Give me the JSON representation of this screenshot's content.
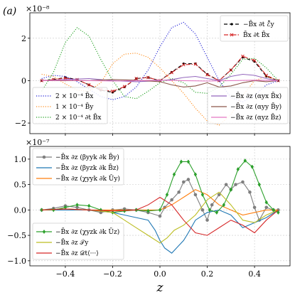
{
  "panel_label": "(a)",
  "chart_data": [
    {
      "type": "line",
      "title": "",
      "xlabel": "",
      "ylabel": "",
      "y_scale_label": "×10⁻⁸",
      "xlim": [
        -0.55,
        0.55
      ],
      "ylim": [
        -2.5,
        3.2
      ],
      "xticks": [
        -0.4,
        -0.2,
        0.0,
        0.2,
        0.4
      ],
      "yticks": [
        -2,
        0,
        2
      ],
      "ytick_labels": [
        "−2",
        "0",
        "2"
      ],
      "grid": true,
      "legend_top_right": "top-right",
      "legend_bottom_left": "lower-left",
      "legend_bottom_right": "lower-right",
      "series": [
        {
          "name": "−B̄x ∂t ℰ̄y",
          "color": "#000000",
          "style": "dashed-dot-markers",
          "legend": "top-right",
          "x": [
            -0.5,
            -0.45,
            -0.4,
            -0.35,
            -0.3,
            -0.25,
            -0.2,
            -0.15,
            -0.1,
            -0.05,
            0.0,
            0.05,
            0.1,
            0.15,
            0.2,
            0.25,
            0.3,
            0.35,
            0.4,
            0.45,
            0.5
          ],
          "y": [
            0.0,
            0.05,
            0.15,
            0.05,
            -0.2,
            -0.45,
            -0.55,
            -0.3,
            0.1,
            0.15,
            0.0,
            0.4,
            0.8,
            0.8,
            0.3,
            0.0,
            0.5,
            1.1,
            0.9,
            0.2,
            0.0
          ]
        },
        {
          "name": "B̄x ∂t B̄x",
          "color": "#d62728",
          "style": "dashdot-x",
          "legend": "top-right",
          "x": [
            -0.5,
            -0.45,
            -0.4,
            -0.35,
            -0.3,
            -0.25,
            -0.2,
            -0.15,
            -0.1,
            -0.05,
            0.0,
            0.05,
            0.1,
            0.15,
            0.2,
            0.25,
            0.3,
            0.35,
            0.4,
            0.45,
            0.5
          ],
          "y": [
            0.0,
            0.05,
            0.12,
            0.05,
            -0.2,
            -0.42,
            -0.5,
            -0.28,
            0.1,
            0.15,
            0.0,
            0.38,
            0.75,
            0.78,
            0.28,
            0.0,
            0.5,
            1.15,
            0.95,
            0.25,
            0.0
          ]
        },
        {
          "name": "2 × 10⁻⁴ B̄x",
          "color": "#1f1fd6",
          "style": "dotted",
          "legend": "bottom-left",
          "x": [
            -0.5,
            -0.45,
            -0.4,
            -0.35,
            -0.3,
            -0.25,
            -0.2,
            -0.15,
            -0.1,
            -0.05,
            0.0,
            0.05,
            0.1,
            0.15,
            0.2,
            0.25,
            0.3,
            0.35,
            0.4,
            0.45,
            0.5
          ],
          "y": [
            0.1,
            0.25,
            0.2,
            -0.05,
            -0.4,
            -0.75,
            -0.9,
            -0.75,
            -0.3,
            0.5,
            1.6,
            2.5,
            2.75,
            2.2,
            1.1,
            0.0,
            -0.8,
            -1.0,
            -0.7,
            -0.2,
            0.0
          ]
        },
        {
          "name": "1 × 10⁻⁴ B̄y",
          "color": "#ff8c1a",
          "style": "dotted",
          "legend": "bottom-left",
          "x": [
            -0.5,
            -0.45,
            -0.4,
            -0.35,
            -0.3,
            -0.25,
            -0.2,
            -0.15,
            -0.1,
            -0.05,
            0.0,
            0.05,
            0.1,
            0.15,
            0.2,
            0.25,
            0.3,
            0.35,
            0.4,
            0.45,
            0.5
          ],
          "y": [
            0.3,
            0.2,
            -0.15,
            -0.45,
            -0.5,
            -0.1,
            0.8,
            1.25,
            1.3,
            1.1,
            0.6,
            0.0,
            -0.6,
            -1.3,
            -1.9,
            -2.1,
            -1.6,
            -0.7,
            0.0,
            0.2,
            0.0
          ]
        },
        {
          "name": "2 × 10⁻⁴ ∂t B̄x",
          "color": "#1a9e1a",
          "style": "dotted",
          "legend": "bottom-left",
          "x": [
            -0.5,
            -0.45,
            -0.4,
            -0.35,
            -0.3,
            -0.25,
            -0.2,
            -0.15,
            -0.1,
            -0.05,
            0.0,
            0.05,
            0.1,
            0.15,
            0.2,
            0.25,
            0.3,
            0.35,
            0.4,
            0.45,
            0.5
          ],
          "y": [
            -0.5,
            0.4,
            1.8,
            2.5,
            2.1,
            1.0,
            0.0,
            -0.75,
            -0.85,
            -0.5,
            -0.1,
            0.1,
            -0.1,
            -0.55,
            -0.6,
            -0.3,
            0.3,
            1.0,
            1.05,
            0.6,
            0.0
          ]
        },
        {
          "name": "−B̄x ∂z (αyx B̄x)",
          "color": "#9467bd",
          "style": "solid",
          "legend": "bottom-right",
          "x": [
            -0.5,
            -0.4,
            -0.3,
            -0.2,
            -0.1,
            0.0,
            0.05,
            0.1,
            0.15,
            0.2,
            0.25,
            0.3,
            0.35,
            0.4,
            0.45,
            0.5
          ],
          "y": [
            0.0,
            0.05,
            0.1,
            0.0,
            -0.05,
            0.0,
            0.05,
            0.15,
            0.2,
            0.1,
            0.0,
            0.2,
            0.3,
            0.25,
            0.1,
            0.0
          ]
        },
        {
          "name": "−B̄x ∂z (αyy B̄y)",
          "color": "#8c564b",
          "style": "solid",
          "legend": "bottom-right",
          "x": [
            -0.5,
            -0.4,
            -0.3,
            -0.2,
            -0.1,
            0.0,
            0.05,
            0.1,
            0.15,
            0.2,
            0.25,
            0.3,
            0.35,
            0.4,
            0.45,
            0.5
          ],
          "y": [
            0.0,
            0.0,
            0.0,
            0.05,
            0.02,
            -0.05,
            -0.2,
            -0.3,
            -0.25,
            -0.1,
            -0.3,
            -0.25,
            -0.1,
            0.0,
            -0.05,
            0.0
          ]
        },
        {
          "name": "−B̄x ∂z (αyz B̄z)",
          "color": "#e377c2",
          "style": "solid",
          "legend": "bottom-right",
          "x": [
            -0.5,
            -0.4,
            -0.3,
            -0.2,
            -0.1,
            0.0,
            0.1,
            0.2,
            0.3,
            0.4,
            0.5
          ],
          "y": [
            0.0,
            0.02,
            0.0,
            -0.02,
            0.0,
            0.02,
            0.0,
            -0.02,
            0.0,
            0.02,
            0.0
          ]
        }
      ]
    },
    {
      "type": "line",
      "title": "",
      "xlabel": "z",
      "ylabel": "",
      "y_scale_label": "×10⁻⁷",
      "xlim": [
        -0.55,
        0.55
      ],
      "ylim": [
        -1.1,
        1.25
      ],
      "xticks": [
        -0.4,
        -0.2,
        0.0,
        0.2,
        0.4
      ],
      "xtick_labels": [
        "−0.4",
        "−0.2",
        "0.0",
        "0.2",
        "0.4"
      ],
      "yticks": [
        -1.0,
        -0.5,
        0.0,
        0.5,
        1.0
      ],
      "ytick_labels": [
        "−1.0",
        "−0.5",
        "0.0",
        "0.5",
        "1.0"
      ],
      "grid": true,
      "legend_top_left": "top-left",
      "legend_bottom_left": "lower-left",
      "series": [
        {
          "name": "−B̄x ∂z (βyyk ∂k B̄y)",
          "color": "#7f7f7f",
          "style": "solid-dots",
          "legend": "top-left",
          "x": [
            -0.5,
            -0.45,
            -0.4,
            -0.35,
            -0.3,
            -0.25,
            -0.2,
            -0.15,
            -0.1,
            -0.05,
            0.0,
            0.02,
            0.05,
            0.08,
            0.1,
            0.12,
            0.15,
            0.18,
            0.2,
            0.22,
            0.25,
            0.28,
            0.3,
            0.32,
            0.35,
            0.38,
            0.4,
            0.42,
            0.45,
            0.48,
            0.5
          ],
          "y": [
            0.0,
            0.03,
            0.08,
            0.05,
            0.0,
            -0.05,
            0.0,
            0.02,
            0.0,
            -0.05,
            -0.12,
            0.05,
            0.2,
            0.35,
            0.55,
            0.6,
            0.3,
            0.0,
            -0.2,
            0.1,
            0.3,
            0.5,
            0.4,
            0.5,
            0.55,
            0.35,
            0.05,
            -0.2,
            0.05,
            0.0,
            0.0
          ]
        },
        {
          "name": "−B̄x ∂z (βyzk ∂k B̄z)",
          "color": "#1f77b4",
          "style": "solid",
          "legend": "top-left",
          "x": [
            -0.5,
            -0.4,
            -0.3,
            -0.2,
            -0.15,
            -0.1,
            -0.05,
            -0.02,
            0.0,
            0.02,
            0.05,
            0.08,
            0.1,
            0.12,
            0.15,
            0.2,
            0.25,
            0.3,
            0.35,
            0.4,
            0.45,
            0.5
          ],
          "y": [
            0.0,
            0.0,
            0.0,
            -0.05,
            -0.1,
            -0.15,
            -0.2,
            -0.4,
            -0.6,
            -0.75,
            -0.85,
            -0.7,
            -0.6,
            -0.45,
            -0.2,
            -0.05,
            0.0,
            -0.1,
            -0.35,
            -0.25,
            -0.15,
            0.0
          ]
        },
        {
          "name": "−B̄x ∂z (χyyk ∂k Ūy)",
          "color": "#ff7f0e",
          "style": "solid",
          "legend": "top-left",
          "x": [
            -0.5,
            -0.4,
            -0.3,
            -0.2,
            -0.1,
            0.0,
            0.05,
            0.1,
            0.15,
            0.2,
            0.25,
            0.3,
            0.35,
            0.4,
            0.45,
            0.5
          ],
          "y": [
            0.0,
            0.02,
            0.0,
            0.0,
            0.0,
            0.0,
            0.1,
            0.25,
            0.4,
            0.3,
            0.1,
            0.0,
            -0.1,
            -0.05,
            0.0,
            0.0
          ]
        },
        {
          "name": "−B̄x ∂z (χyzk ∂k Ūz)",
          "color": "#2ca02c",
          "style": "solid-diamonds",
          "legend": "bottom-left",
          "x": [
            -0.5,
            -0.45,
            -0.4,
            -0.35,
            -0.3,
            -0.25,
            -0.2,
            -0.15,
            -0.1,
            -0.05,
            0.0,
            0.03,
            0.06,
            0.09,
            0.12,
            0.15,
            0.18,
            0.21,
            0.24,
            0.27,
            0.3,
            0.33,
            0.36,
            0.39,
            0.42,
            0.45,
            0.48,
            0.5
          ],
          "y": [
            0.0,
            0.0,
            0.05,
            0.1,
            0.08,
            0.0,
            -0.05,
            -0.02,
            0.0,
            -0.02,
            0.0,
            0.3,
            0.7,
            0.95,
            0.95,
            0.7,
            0.3,
            0.0,
            -0.05,
            0.1,
            0.4,
            0.8,
            0.97,
            0.85,
            0.5,
            0.15,
            0.0,
            -0.05
          ]
        },
        {
          "name": "−B̄x ∂z 𝒯y",
          "color": "#bcbd22",
          "style": "solid",
          "legend": "bottom-left",
          "x": [
            -0.5,
            -0.4,
            -0.3,
            -0.2,
            -0.15,
            -0.1,
            -0.05,
            0.0,
            0.03,
            0.06,
            0.1,
            0.15,
            0.2,
            0.25,
            0.3,
            0.35,
            0.4,
            0.45,
            0.5
          ],
          "y": [
            0.0,
            0.02,
            0.0,
            -0.05,
            -0.2,
            -0.35,
            -0.5,
            -0.65,
            -0.55,
            -0.4,
            -0.3,
            -0.1,
            0.2,
            0.35,
            0.1,
            -0.2,
            -0.25,
            -0.1,
            0.0
          ]
        },
        {
          "name": "−B̄x ∂z 𝒟t⟨···⟩",
          "color": "#d62728",
          "style": "solid",
          "legend": "bottom-left",
          "x": [
            -0.5,
            -0.4,
            -0.3,
            -0.2,
            -0.1,
            -0.05,
            0.0,
            0.05,
            0.1,
            0.15,
            0.2,
            0.25,
            0.3,
            0.35,
            0.4,
            0.45,
            0.5
          ],
          "y": [
            0.0,
            0.02,
            0.0,
            -0.02,
            0.0,
            0.1,
            0.25,
            0.1,
            -0.2,
            -0.45,
            -0.5,
            -0.35,
            -0.2,
            -0.3,
            -0.45,
            -0.2,
            0.0
          ]
        }
      ]
    }
  ]
}
